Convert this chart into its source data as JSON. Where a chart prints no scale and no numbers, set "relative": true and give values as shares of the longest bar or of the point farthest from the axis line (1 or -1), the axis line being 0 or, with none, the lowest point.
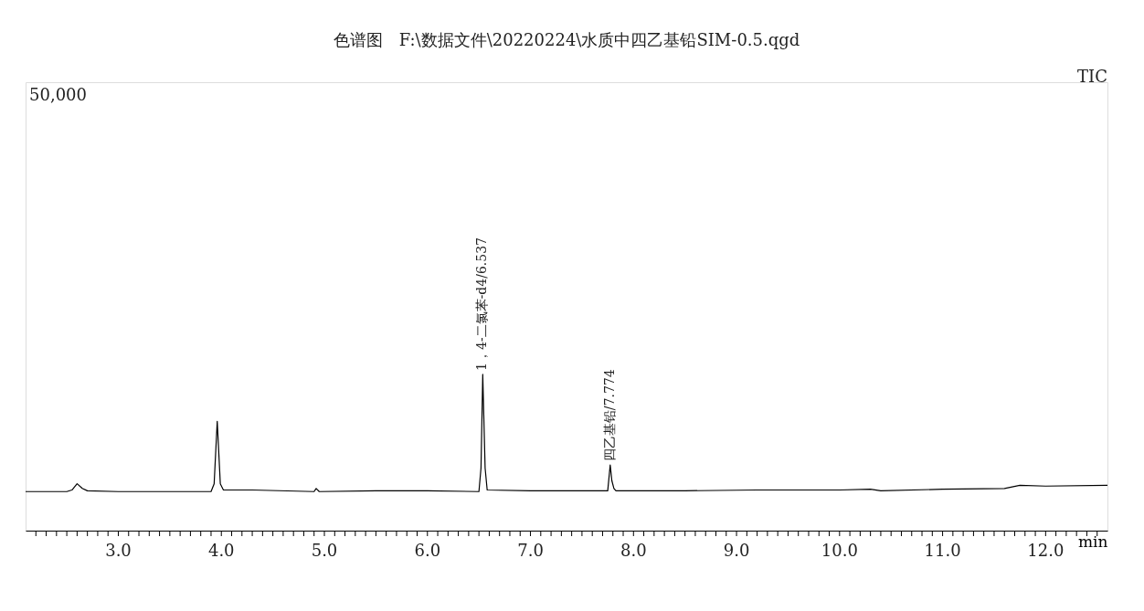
{
  "chart_data": {
    "type": "line",
    "relative": true,
    "title": "色谱图　F:\\数据文件\\20220224\\水质中四乙基铅SIM-0.5.qgd",
    "xlabel": "min",
    "xlim": [
      2.1,
      12.6
    ],
    "xticks": [
      {
        "value": 2.2,
        "label": null
      },
      {
        "value": 2.3,
        "label": null
      },
      {
        "value": 2.4,
        "label": null
      },
      {
        "value": 2.5,
        "label": null
      },
      {
        "value": 2.6,
        "label": null
      },
      {
        "value": 2.7,
        "label": null
      },
      {
        "value": 2.8,
        "label": null
      },
      {
        "value": 2.9,
        "label": null
      },
      {
        "value": 3,
        "label": "3.0"
      },
      {
        "value": 3.1,
        "label": null
      },
      {
        "value": 3.2,
        "label": null
      },
      {
        "value": 3.3,
        "label": null
      },
      {
        "value": 3.4,
        "label": null
      },
      {
        "value": 3.5,
        "label": null
      },
      {
        "value": 3.6,
        "label": null
      },
      {
        "value": 3.7,
        "label": null
      },
      {
        "value": 3.8,
        "label": null
      },
      {
        "value": 3.9,
        "label": null
      },
      {
        "value": 4,
        "label": "4.0"
      },
      {
        "value": 4.1,
        "label": null
      },
      {
        "value": 4.2,
        "label": null
      },
      {
        "value": 4.3,
        "label": null
      },
      {
        "value": 4.4,
        "label": null
      },
      {
        "value": 4.5,
        "label": null
      },
      {
        "value": 4.6,
        "label": null
      },
      {
        "value": 4.7,
        "label": null
      },
      {
        "value": 4.8,
        "label": null
      },
      {
        "value": 4.9,
        "label": null
      },
      {
        "value": 5,
        "label": "5.0"
      },
      {
        "value": 5.1,
        "label": null
      },
      {
        "value": 5.2,
        "label": null
      },
      {
        "value": 5.3,
        "label": null
      },
      {
        "value": 5.4,
        "label": null
      },
      {
        "value": 5.5,
        "label": null
      },
      {
        "value": 5.6,
        "label": null
      },
      {
        "value": 5.7,
        "label": null
      },
      {
        "value": 5.8,
        "label": null
      },
      {
        "value": 5.9,
        "label": null
      },
      {
        "value": 6,
        "label": "6.0"
      },
      {
        "value": 6.1,
        "label": null
      },
      {
        "value": 6.2,
        "label": null
      },
      {
        "value": 6.3,
        "label": null
      },
      {
        "value": 6.4,
        "label": null
      },
      {
        "value": 6.5,
        "label": null
      },
      {
        "value": 6.6,
        "label": null
      },
      {
        "value": 6.7,
        "label": null
      },
      {
        "value": 6.8,
        "label": null
      },
      {
        "value": 6.9,
        "label": null
      },
      {
        "value": 7,
        "label": "7.0"
      },
      {
        "value": 7.1,
        "label": null
      },
      {
        "value": 7.2,
        "label": null
      },
      {
        "value": 7.3,
        "label": null
      },
      {
        "value": 7.4,
        "label": null
      },
      {
        "value": 7.5,
        "label": null
      },
      {
        "value": 7.6,
        "label": null
      },
      {
        "value": 7.7,
        "label": null
      },
      {
        "value": 7.8,
        "label": null
      },
      {
        "value": 7.9,
        "label": null
      },
      {
        "value": 8,
        "label": "8.0"
      },
      {
        "value": 8.1,
        "label": null
      },
      {
        "value": 8.2,
        "label": null
      },
      {
        "value": 8.3,
        "label": null
      },
      {
        "value": 8.4,
        "label": null
      },
      {
        "value": 8.5,
        "label": null
      },
      {
        "value": 8.6,
        "label": null
      },
      {
        "value": 8.7,
        "label": null
      },
      {
        "value": 8.8,
        "label": null
      },
      {
        "value": 8.9,
        "label": null
      },
      {
        "value": 9,
        "label": "9.0"
      },
      {
        "value": 9.1,
        "label": null
      },
      {
        "value": 9.2,
        "label": null
      },
      {
        "value": 9.3,
        "label": null
      },
      {
        "value": 9.4,
        "label": null
      },
      {
        "value": 9.5,
        "label": null
      },
      {
        "value": 9.6,
        "label": null
      },
      {
        "value": 9.7,
        "label": null
      },
      {
        "value": 9.8,
        "label": null
      },
      {
        "value": 9.9,
        "label": null
      },
      {
        "value": 10,
        "label": "10.0"
      },
      {
        "value": 10.1,
        "label": null
      },
      {
        "value": 10.2,
        "label": null
      },
      {
        "value": 10.3,
        "label": null
      },
      {
        "value": 10.4,
        "label": null
      },
      {
        "value": 10.5,
        "label": null
      },
      {
        "value": 10.6,
        "label": null
      },
      {
        "value": 10.7,
        "label": null
      },
      {
        "value": 10.8,
        "label": null
      },
      {
        "value": 10.9,
        "label": null
      },
      {
        "value": 11,
        "label": "11.0"
      },
      {
        "value": 11.1,
        "label": null
      },
      {
        "value": 11.2,
        "label": null
      },
      {
        "value": 11.3,
        "label": null
      },
      {
        "value": 11.4,
        "label": null
      },
      {
        "value": 11.5,
        "label": null
      },
      {
        "value": 11.6,
        "label": null
      },
      {
        "value": 11.7,
        "label": null
      },
      {
        "value": 11.8,
        "label": null
      },
      {
        "value": 11.9,
        "label": null
      },
      {
        "value": 12,
        "label": "12.0"
      },
      {
        "value": 12.1,
        "label": null
      },
      {
        "value": 12.2,
        "label": null
      },
      {
        "value": 12.3,
        "label": null
      },
      {
        "value": 12.4,
        "label": null
      },
      {
        "value": 12.5,
        "label": null
      }
    ],
    "x": [
      2.1,
      2.5,
      2.55,
      2.6,
      2.65,
      2.7,
      3.0,
      3.5,
      3.9,
      3.93,
      3.96,
      3.99,
      4.02,
      4.3,
      4.9,
      4.92,
      4.95,
      5.5,
      6.0,
      6.5,
      6.52,
      6.537,
      6.56,
      6.58,
      7.0,
      7.5,
      7.75,
      7.774,
      7.79,
      7.81,
      7.83,
      8.5,
      9.2,
      10.0,
      10.3,
      10.4,
      11.0,
      11.6,
      11.75,
      12.0,
      12.6
    ],
    "series": [
      {
        "color": "#000000",
        "values": [
          0.25,
          0.25,
          0.26,
          0.3,
          0.27,
          0.255,
          0.25,
          0.25,
          0.25,
          0.3,
          0.7,
          0.3,
          0.26,
          0.26,
          0.25,
          0.27,
          0.25,
          0.255,
          0.255,
          0.25,
          0.4,
          1.0,
          0.4,
          0.26,
          0.255,
          0.255,
          0.255,
          0.42,
          0.32,
          0.27,
          0.255,
          0.255,
          0.26,
          0.26,
          0.265,
          0.255,
          0.265,
          0.27,
          0.29,
          0.285,
          0.29
        ]
      }
    ],
    "annotations": [
      "50,000",
      "TIC",
      {
        "text": "1，4-二氯苯-d4/6.537",
        "x": 6.537,
        "y": 1.0
      },
      {
        "text": "四乙基铅/7.774",
        "x": 7.774,
        "y": 0.42
      }
    ],
    "grid": false,
    "marker": "none",
    "line_style": "solid"
  }
}
